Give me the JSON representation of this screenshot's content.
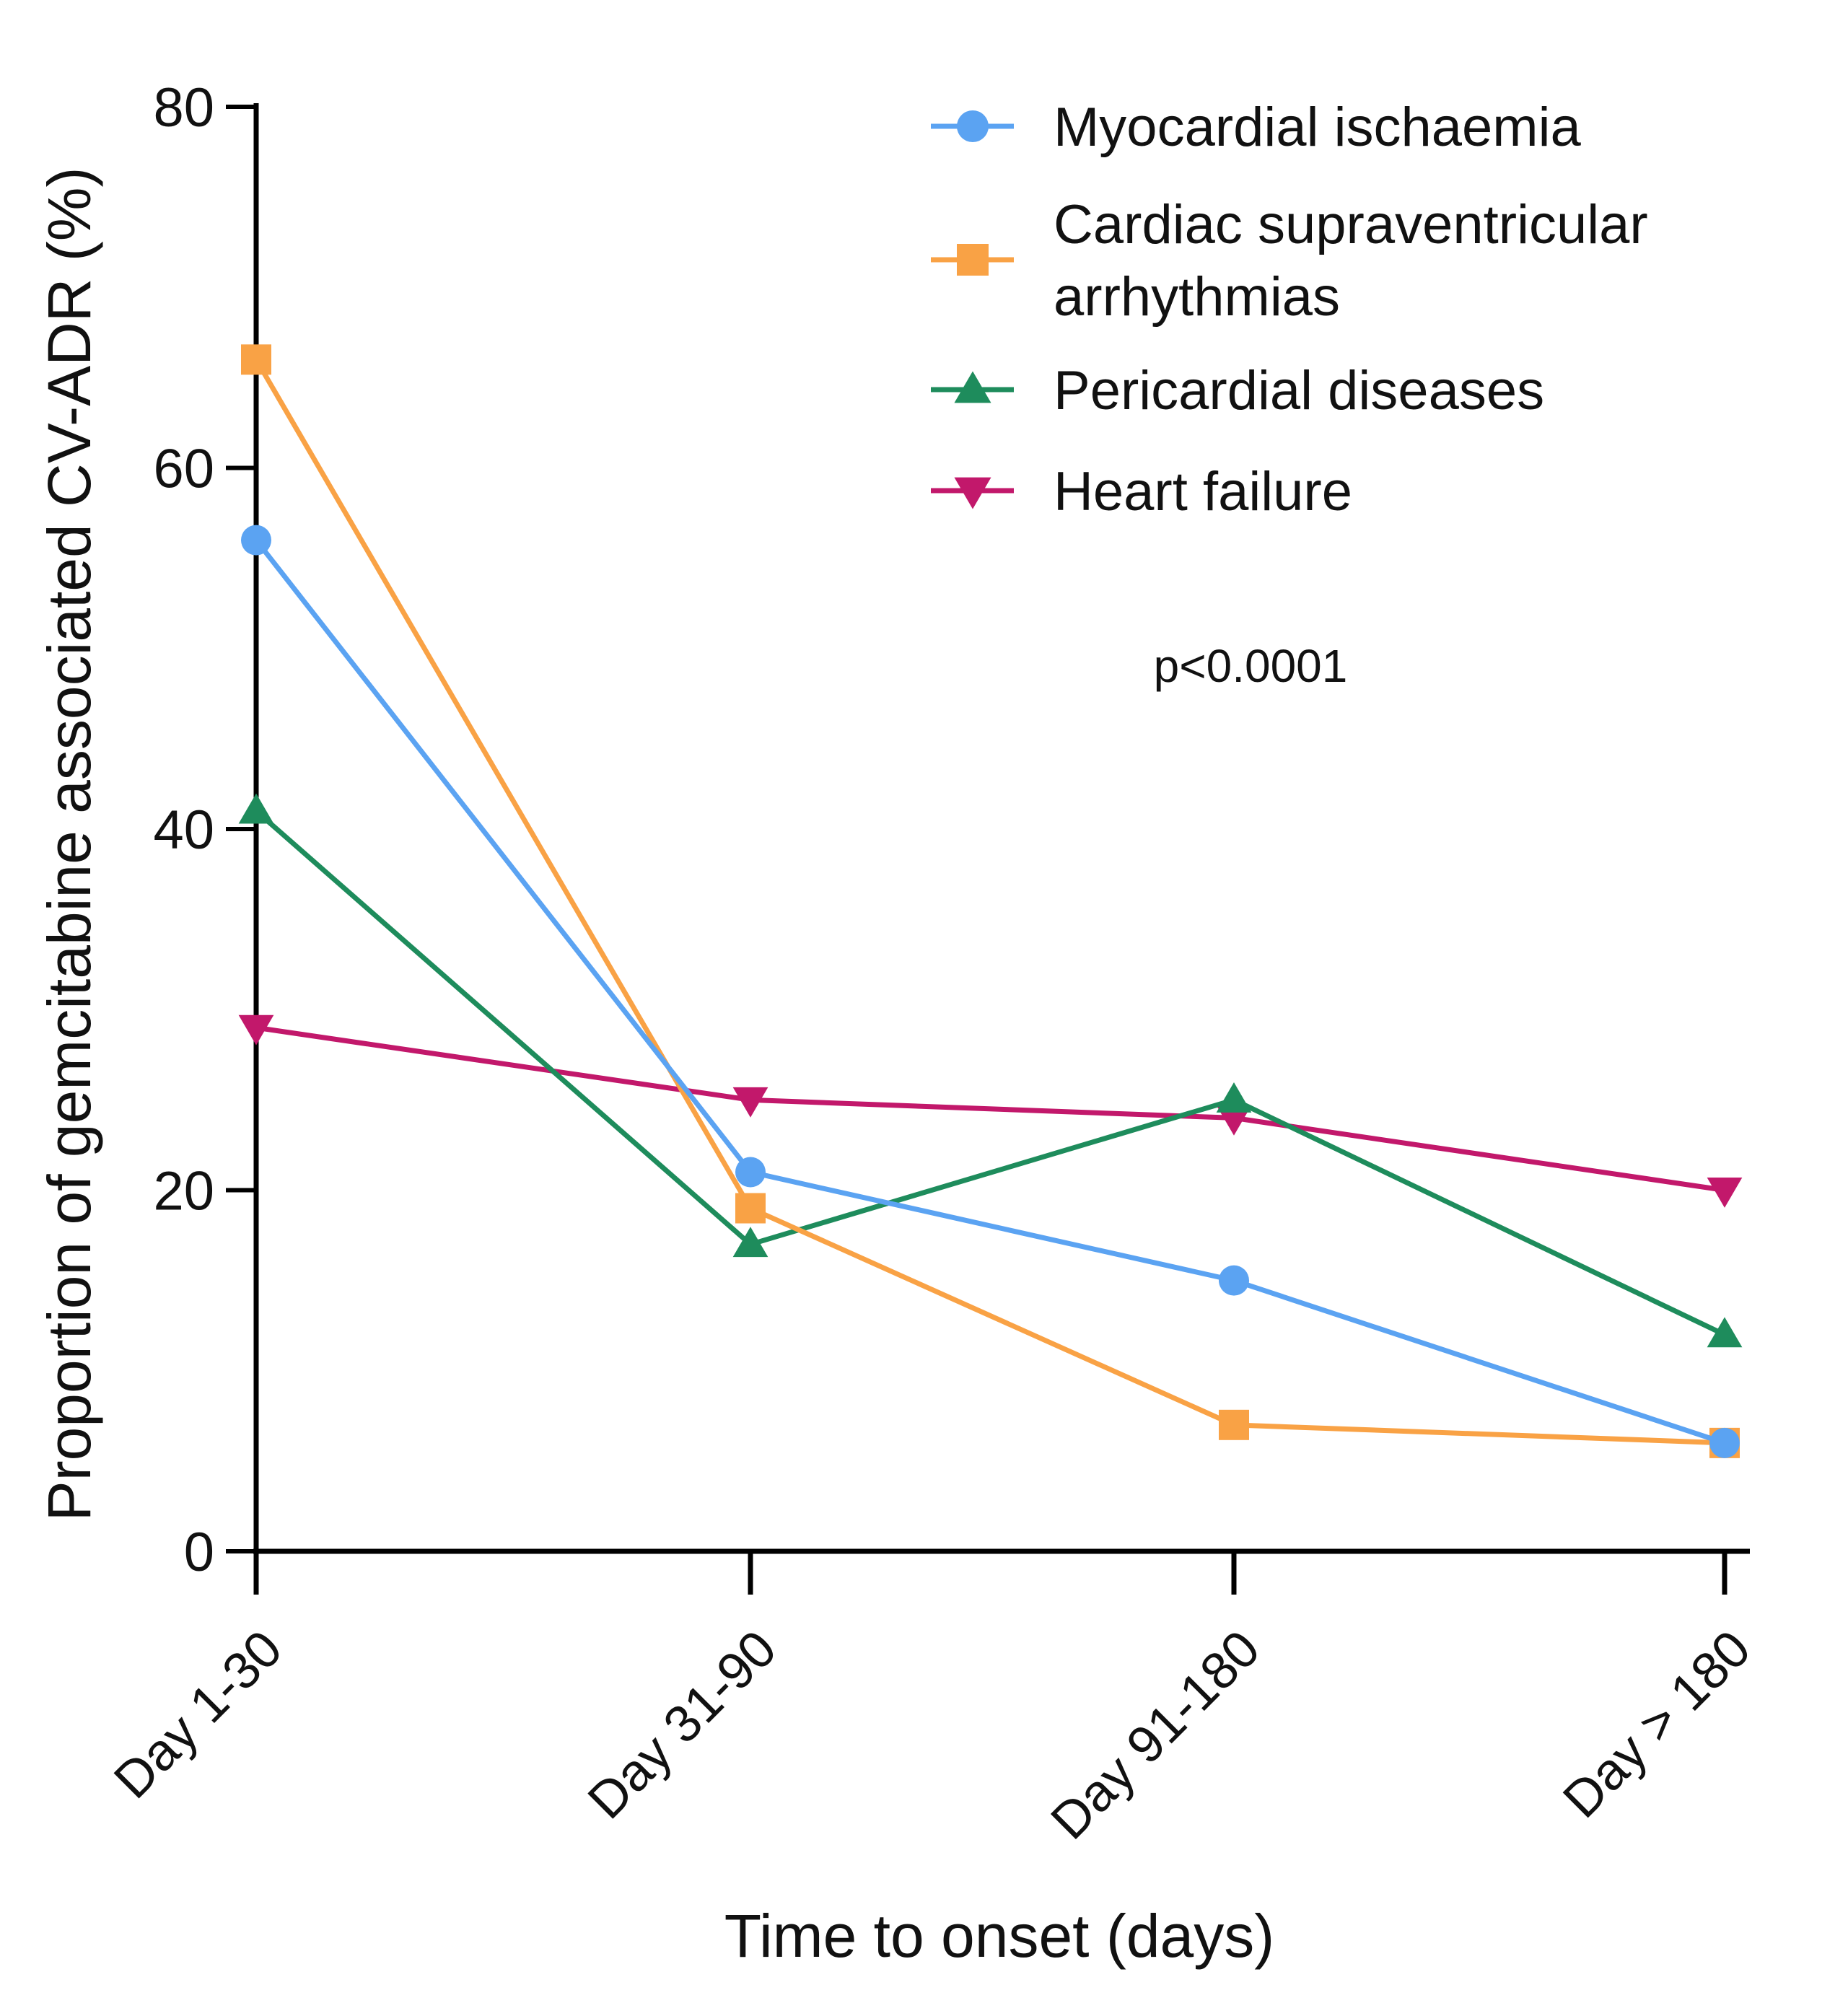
{
  "chart_data": {
    "type": "line",
    "title": "",
    "xlabel": "Time to onset (days)",
    "ylabel": "Proportion of gemcitabine associated CV-ADR (%)",
    "categories": [
      "Day 1-30",
      "Day 31-90",
      "Day 91-180",
      "Day > 180"
    ],
    "ylim": [
      0,
      80
    ],
    "yticks": [
      0,
      20,
      40,
      60,
      80
    ],
    "grid": false,
    "legend_position": "top-right",
    "annotation": "p<0.0001",
    "series": [
      {
        "name": "Myocardial ischaemia",
        "legend_lines": [
          "Myocardial ischaemia"
        ],
        "marker": "circle",
        "color": "#5BA3F2",
        "values": [
          56,
          21,
          15,
          6
        ]
      },
      {
        "name": "Cardiac supraventricular arrhythmias",
        "legend_lines": [
          "Cardiac supraventricular",
          "arrhythmias"
        ],
        "marker": "square",
        "color": "#F9A245",
        "values": [
          66,
          19,
          7,
          6
        ]
      },
      {
        "name": "Pericardial diseases",
        "legend_lines": [
          "Pericardial diseases"
        ],
        "marker": "triangle-up",
        "color": "#1E8C5C",
        "values": [
          41,
          17,
          25,
          12
        ]
      },
      {
        "name": "Heart failure",
        "legend_lines": [
          "Heart failure"
        ],
        "marker": "triangle-down",
        "color": "#C2186B",
        "values": [
          29,
          25,
          24,
          20
        ]
      }
    ]
  }
}
